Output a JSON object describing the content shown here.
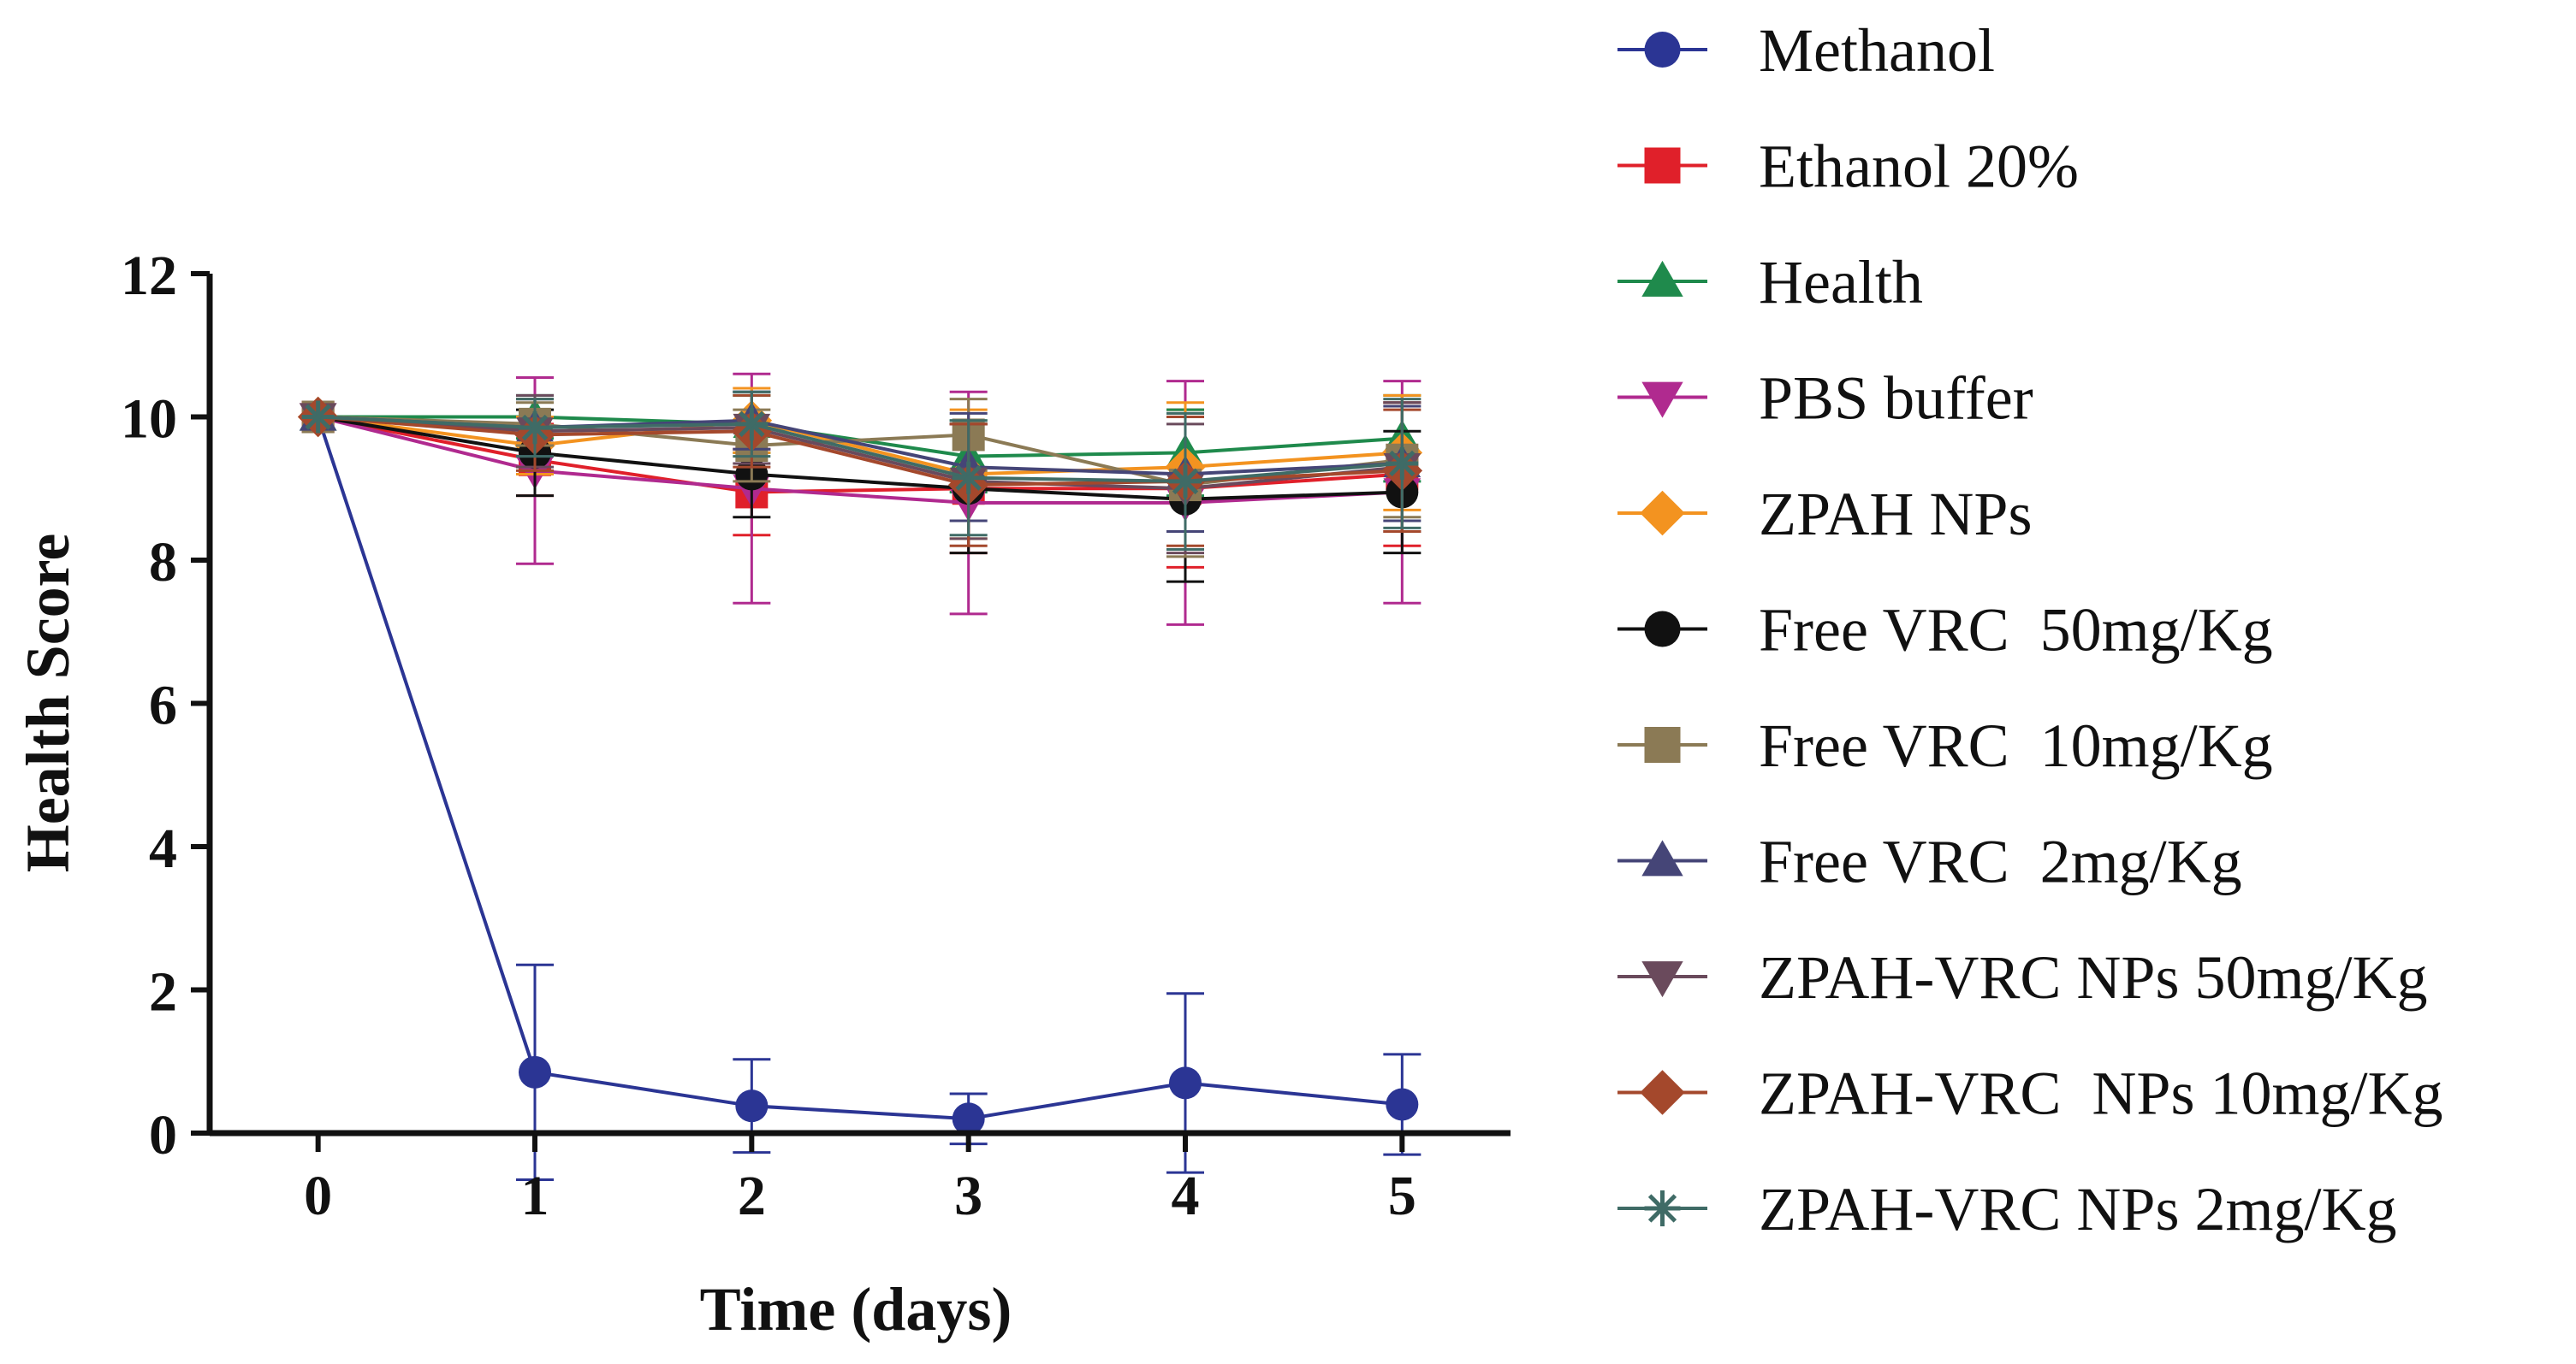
{
  "chart_data": {
    "type": "line",
    "title": "",
    "xlabel": "Time (days)",
    "ylabel": "Health Score",
    "x": [
      0,
      1,
      2,
      3,
      4,
      5
    ],
    "xlim": [
      -0.5,
      5.5
    ],
    "ylim": [
      0,
      12
    ],
    "xticks": [
      "0",
      "1",
      "2",
      "3",
      "4",
      "5"
    ],
    "yticks": [
      "0",
      "2",
      "4",
      "6",
      "8",
      "10",
      "12"
    ],
    "grid": false,
    "legend_position": "right",
    "series": [
      {
        "name": "Methanol",
        "color": "#2b3594",
        "marker": "circle",
        "values": [
          10,
          0.85,
          0.38,
          0.2,
          0.7,
          0.4
        ],
        "errors": [
          0,
          1.5,
          0.65,
          0.35,
          1.25,
          0.7
        ]
      },
      {
        "name": "Ethanol 20%",
        "color": "#e0202a",
        "marker": "square",
        "values": [
          10,
          9.4,
          8.95,
          9.0,
          9.0,
          9.2
        ],
        "errors": [
          0,
          0.5,
          0.6,
          0.9,
          1.1,
          1.0
        ]
      },
      {
        "name": "Health",
        "color": "#1f8a4c",
        "marker": "triangle-up",
        "values": [
          10,
          10.0,
          9.9,
          9.45,
          9.5,
          9.7
        ],
        "errors": [
          0,
          0.3,
          0.4,
          0.5,
          0.6,
          0.6
        ]
      },
      {
        "name": "PBS buffer",
        "color": "#b02a8f",
        "marker": "triangle-down",
        "values": [
          10,
          9.25,
          9.0,
          8.8,
          8.8,
          8.95
        ],
        "errors": [
          0,
          1.3,
          1.6,
          1.55,
          1.7,
          1.55
        ]
      },
      {
        "name": "ZPAH NPs",
        "color": "#f39320",
        "marker": "diamond",
        "values": [
          10,
          9.6,
          9.95,
          9.2,
          9.3,
          9.5
        ],
        "errors": [
          0,
          0.4,
          0.45,
          0.9,
          0.9,
          0.8
        ]
      },
      {
        "name": "Free VRC  50mg/Kg",
        "color": "#111111",
        "marker": "circle",
        "values": [
          10,
          9.5,
          9.2,
          9.0,
          8.85,
          8.95
        ],
        "errors": [
          0,
          0.6,
          0.6,
          0.9,
          1.15,
          0.85
        ]
      },
      {
        "name": "Free VRC  10mg/Kg",
        "color": "#8b7a55",
        "marker": "square",
        "values": [
          10,
          9.9,
          9.6,
          9.75,
          9.05,
          9.4
        ],
        "errors": [
          0,
          0.3,
          0.5,
          0.5,
          1.0,
          0.8
        ]
      },
      {
        "name": "Free VRC  2mg/Kg",
        "color": "#454577",
        "marker": "triangle-up",
        "values": [
          10,
          9.85,
          9.95,
          9.3,
          9.2,
          9.35
        ],
        "errors": [
          0,
          0.4,
          0.4,
          0.75,
          0.8,
          0.8
        ]
      },
      {
        "name": "ZPAH-VRC NPs 50mg/Kg",
        "color": "#6a4a5c",
        "marker": "triangle-down",
        "values": [
          10,
          9.8,
          9.85,
          9.1,
          9.0,
          9.3
        ],
        "errors": [
          0,
          0.5,
          0.5,
          0.8,
          0.9,
          0.9
        ]
      },
      {
        "name": "ZPAH-VRC  NPs 10mg/Kg",
        "color": "#a4482c",
        "marker": "diamond",
        "values": [
          10,
          9.75,
          9.8,
          9.05,
          9.1,
          9.25
        ],
        "errors": [
          0,
          0.5,
          0.5,
          0.85,
          0.9,
          0.85
        ]
      },
      {
        "name": "ZPAH-VRC NPs 2mg/Kg",
        "color": "#3f6b66",
        "marker": "asterisk",
        "values": [
          10,
          9.85,
          9.9,
          9.15,
          9.1,
          9.35
        ],
        "errors": [
          0,
          0.4,
          0.45,
          0.8,
          0.95,
          0.9
        ]
      }
    ]
  }
}
